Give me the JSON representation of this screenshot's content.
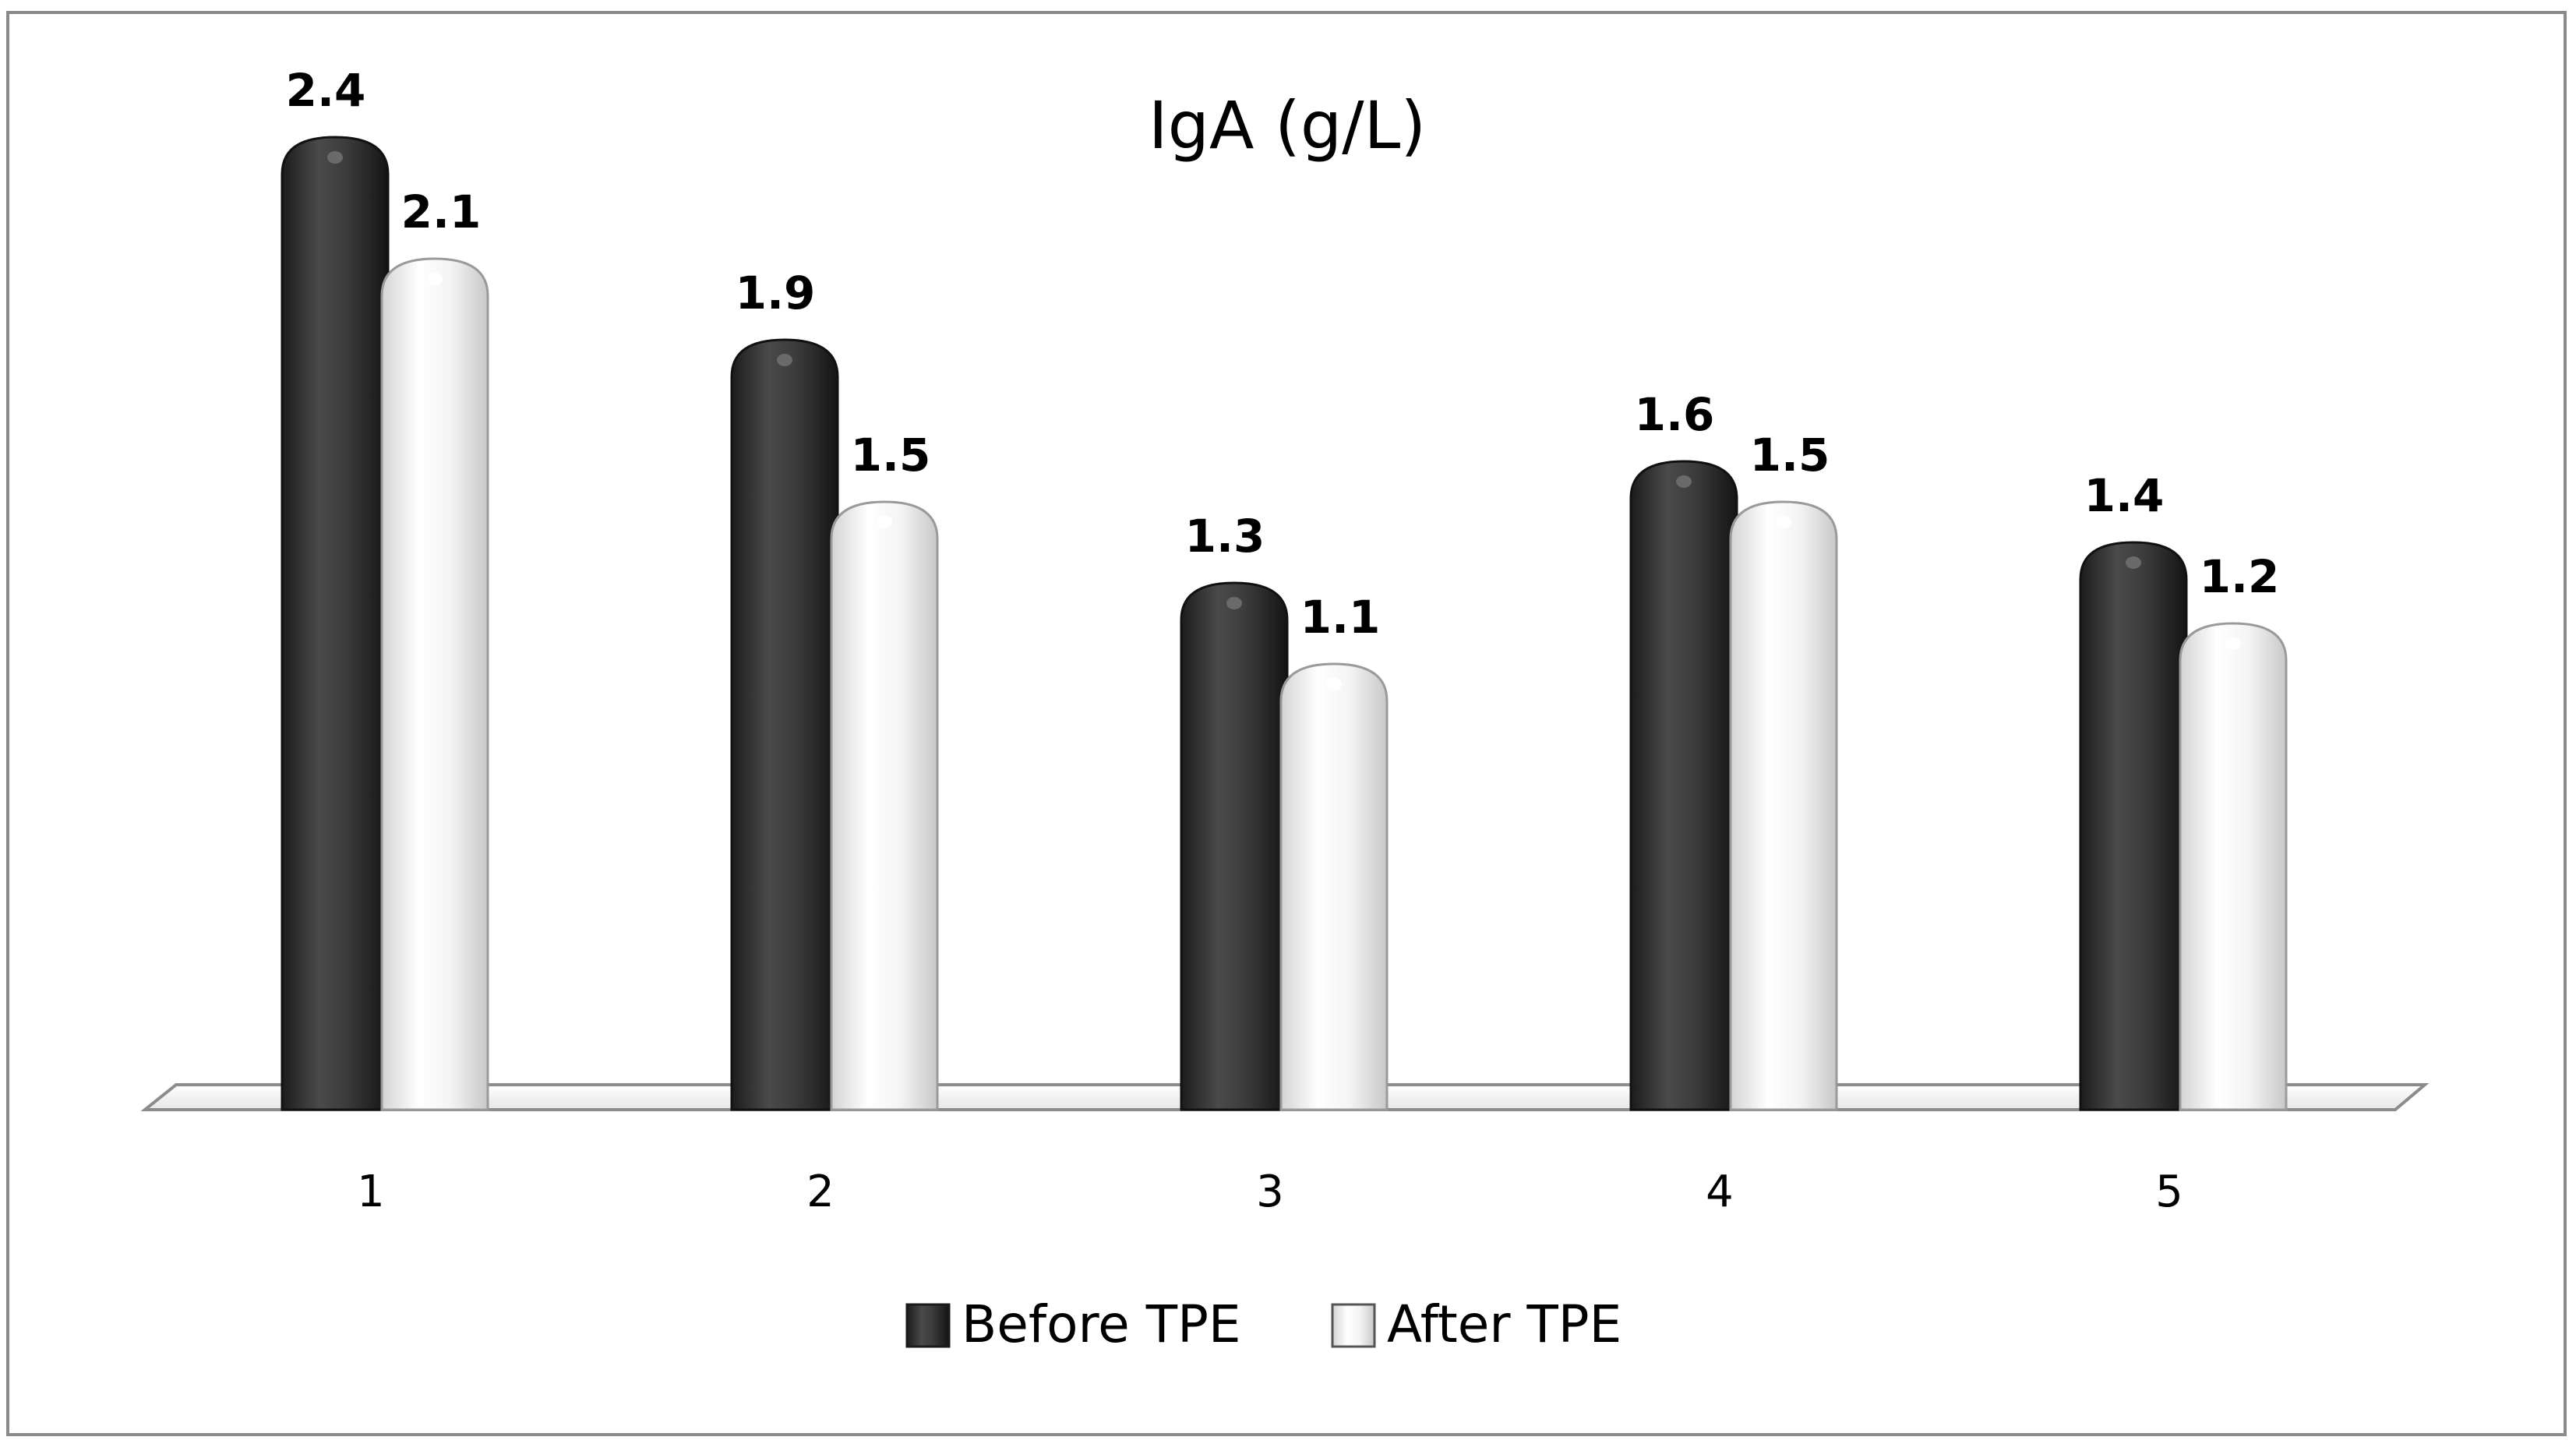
{
  "chart_data": {
    "type": "bar",
    "title": "IgA (g/L)",
    "categories": [
      "1",
      "2",
      "3",
      "4",
      "5"
    ],
    "series": [
      {
        "name": "Before TPE",
        "values": [
          2.4,
          1.9,
          1.3,
          1.6,
          1.4
        ],
        "color": "#3a3a3a"
      },
      {
        "name": "After TPE",
        "values": [
          2.1,
          1.5,
          1.1,
          1.5,
          1.2
        ],
        "color": "#f2f2f2"
      }
    ],
    "xlabel": "",
    "ylabel": "",
    "ylim": [
      0,
      2.6
    ],
    "grid": false,
    "legend": "bottom-center",
    "data_labels": true
  }
}
